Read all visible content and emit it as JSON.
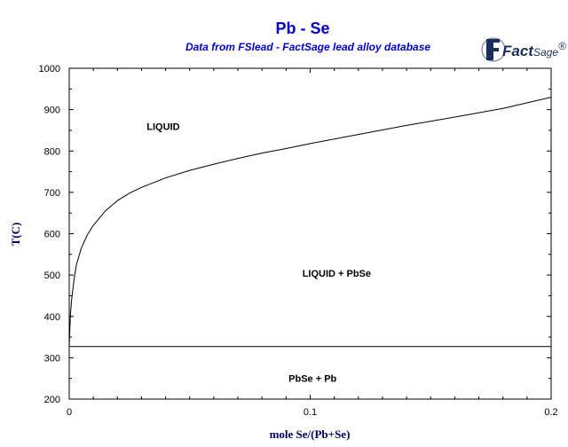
{
  "chart_data": {
    "type": "line",
    "title": "Pb - Se",
    "subtitle": "Data from FSlead - FactSage lead alloy database",
    "xlabel": "mole Se/(Pb+Se)",
    "ylabel": "T(C)",
    "xlim": [
      0,
      0.2
    ],
    "ylim": [
      200,
      1000
    ],
    "x_ticks": [
      0,
      0.1,
      0.2
    ],
    "x_tick_labels": [
      "0",
      "0.1",
      "0.2"
    ],
    "y_ticks": [
      200,
      300,
      400,
      500,
      600,
      700,
      800,
      900,
      1000
    ],
    "y_tick_labels": [
      "200",
      "300",
      "400",
      "500",
      "600",
      "700",
      "800",
      "900",
      "1000"
    ],
    "grid": false,
    "series": [
      {
        "x": [
          0,
          0.0005,
          0.001,
          0.002,
          0.003,
          0.005,
          0.0075,
          0.01,
          0.015,
          0.02,
          0.025,
          0.03,
          0.04,
          0.05,
          0.06,
          0.07,
          0.08,
          0.09,
          0.1,
          0.12,
          0.14,
          0.16,
          0.18,
          0.2
        ],
        "y": [
          327,
          405,
          440,
          490,
          525,
          565,
          597,
          620,
          655,
          680,
          698,
          712,
          735,
          753,
          768,
          782,
          795,
          806,
          818,
          840,
          862,
          882,
          903,
          930
        ]
      },
      {
        "x": [
          0,
          0.2
        ],
        "y": [
          327,
          327
        ]
      }
    ],
    "regions": [
      {
        "label": "LIQUID",
        "x": 0.039,
        "y": 860
      },
      {
        "label": "LIQUID + PbSe",
        "x": 0.111,
        "y": 505
      },
      {
        "label": "PbSe + Pb",
        "x": 0.101,
        "y": 250
      }
    ]
  },
  "logo": {
    "fact": "Fact",
    "sage": "Sage",
    "mark": "®"
  }
}
